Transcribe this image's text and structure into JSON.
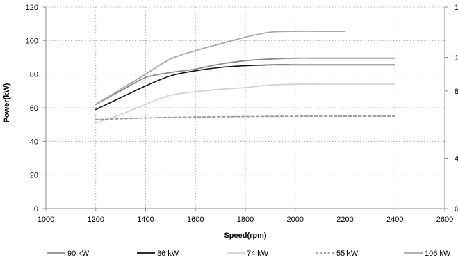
{
  "chart_data": {
    "type": "line",
    "xlabel": "Speed(rpm)",
    "ylabel": "Power(kW)",
    "xlim": [
      1000,
      2600
    ],
    "ylim": [
      0,
      120
    ],
    "x_ticks": [
      1000,
      1200,
      1400,
      1600,
      1800,
      2000,
      2200,
      2400,
      2600
    ],
    "y_ticks": [
      0,
      20,
      40,
      60,
      80,
      100,
      120
    ],
    "grid": true,
    "legend_position": "bottom",
    "secondary_axis_partial_labels": [
      "1",
      "1",
      "8",
      "4",
      "0"
    ],
    "series": [
      {
        "name": "90 kW",
        "color": "#8c8c8c",
        "dash": "solid",
        "x": [
          1200,
          1300,
          1400,
          1500,
          1600,
          1700,
          1800,
          1900,
          2000,
          2100,
          2200,
          2300,
          2400
        ],
        "y": [
          62,
          70,
          78,
          81,
          83,
          86,
          88,
          89,
          89.5,
          89.5,
          89.5,
          89.5,
          89.5
        ]
      },
      {
        "name": "86 kW",
        "color": "#111111",
        "dash": "solid",
        "x": [
          1200,
          1300,
          1400,
          1500,
          1600,
          1700,
          1800,
          1900,
          2000,
          2100,
          2200,
          2300,
          2400
        ],
        "y": [
          59,
          66,
          73,
          79,
          82,
          84,
          85,
          85.5,
          85.5,
          85.5,
          85.5,
          85.5,
          85.5
        ]
      },
      {
        "name": "74 kW",
        "color": "#d3d3d3",
        "dash": "solid",
        "x": [
          1200,
          1300,
          1400,
          1500,
          1600,
          1700,
          1800,
          1900,
          2000,
          2100,
          2200,
          2300,
          2400
        ],
        "y": [
          51,
          56,
          62,
          67.5,
          69.5,
          71,
          72,
          73.5,
          74,
          74,
          74,
          74,
          74
        ]
      },
      {
        "name": "55 kW",
        "color": "#9a9a9a",
        "dash": "dashed",
        "x": [
          1200,
          1400,
          1600,
          1800,
          2000,
          2200,
          2400
        ],
        "y": [
          53,
          54,
          54.5,
          54.8,
          55,
          55,
          55
        ]
      },
      {
        "name": "106 kW",
        "color": "#a8a8a8",
        "dash": "solid",
        "x": [
          1200,
          1300,
          1400,
          1500,
          1600,
          1700,
          1800,
          1900,
          2000,
          2100,
          2200
        ],
        "y": [
          62,
          71,
          80,
          89,
          94,
          98,
          102,
          105,
          105.5,
          105.5,
          105.5
        ]
      }
    ]
  }
}
